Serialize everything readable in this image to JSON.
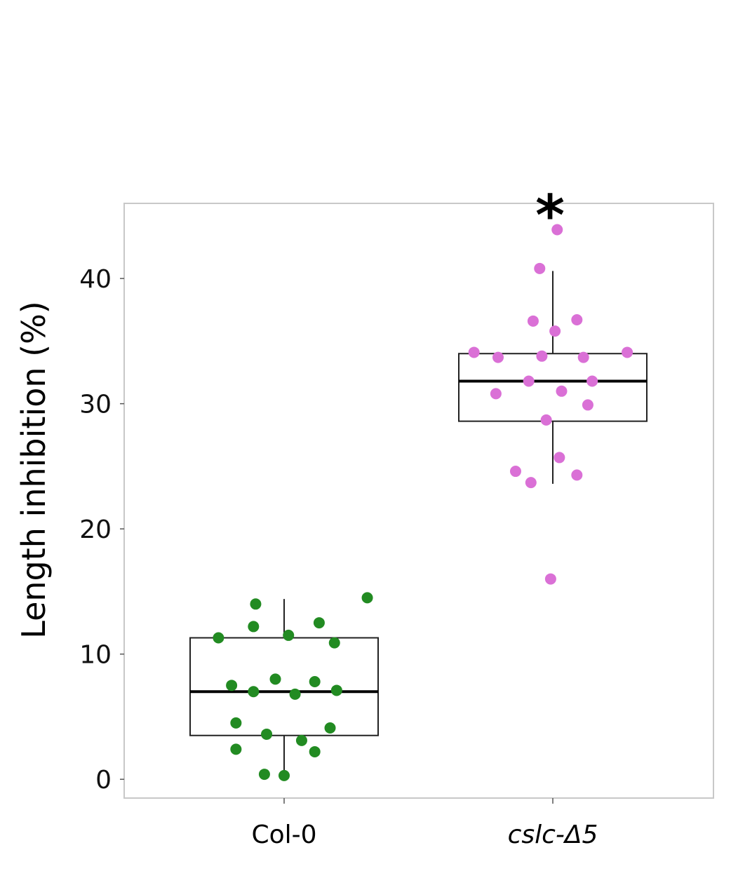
{
  "chart_data": {
    "type": "box",
    "ylabel": "Length inhibition (%)",
    "ylim": [
      -1.5,
      46
    ],
    "yticks": [
      "0",
      "10",
      "20",
      "30",
      "40"
    ],
    "yticks_values": [
      0,
      10,
      20,
      30,
      40
    ],
    "grid": false,
    "categories": [
      "Col-0",
      "cslc-Δ5"
    ],
    "groups": [
      {
        "label": "Col-0",
        "label_italic": false,
        "color": "#228B22",
        "box": {
          "whisker_low": 0.3,
          "q1": 3.5,
          "median": 7.0,
          "q3": 11.3,
          "whisker_high": 14.4
        },
        "points": [
          {
            "jitter": 0.38,
            "y": 14.5
          },
          {
            "jitter": -0.13,
            "y": 14.0
          },
          {
            "jitter": 0.16,
            "y": 12.5
          },
          {
            "jitter": -0.14,
            "y": 12.2
          },
          {
            "jitter": -0.3,
            "y": 11.3
          },
          {
            "jitter": 0.02,
            "y": 11.5
          },
          {
            "jitter": 0.23,
            "y": 10.9
          },
          {
            "jitter": -0.04,
            "y": 8.0
          },
          {
            "jitter": -0.24,
            "y": 7.5
          },
          {
            "jitter": 0.14,
            "y": 7.8
          },
          {
            "jitter": -0.14,
            "y": 7.0
          },
          {
            "jitter": 0.05,
            "y": 6.8
          },
          {
            "jitter": 0.24,
            "y": 7.1
          },
          {
            "jitter": -0.22,
            "y": 4.5
          },
          {
            "jitter": 0.21,
            "y": 4.1
          },
          {
            "jitter": -0.08,
            "y": 3.6
          },
          {
            "jitter": 0.08,
            "y": 3.1
          },
          {
            "jitter": -0.22,
            "y": 2.4
          },
          {
            "jitter": 0.14,
            "y": 2.2
          },
          {
            "jitter": -0.09,
            "y": 0.4
          },
          {
            "jitter": 0.0,
            "y": 0.3
          }
        ]
      },
      {
        "label": "cslc-Δ5",
        "label_italic": true,
        "color": "#DA70D6",
        "box": {
          "whisker_low": 23.6,
          "q1": 28.6,
          "median": 31.8,
          "q3": 34.0,
          "whisker_high": 40.6
        },
        "points": [
          {
            "jitter": 0.02,
            "y": 43.9
          },
          {
            "jitter": -0.06,
            "y": 40.8
          },
          {
            "jitter": -0.09,
            "y": 36.6
          },
          {
            "jitter": 0.11,
            "y": 36.7
          },
          {
            "jitter": 0.01,
            "y": 35.8
          },
          {
            "jitter": -0.36,
            "y": 34.1
          },
          {
            "jitter": -0.25,
            "y": 33.7
          },
          {
            "jitter": -0.05,
            "y": 33.8
          },
          {
            "jitter": 0.14,
            "y": 33.7
          },
          {
            "jitter": 0.34,
            "y": 34.1
          },
          {
            "jitter": -0.11,
            "y": 31.8
          },
          {
            "jitter": 0.18,
            "y": 31.8
          },
          {
            "jitter": -0.26,
            "y": 30.8
          },
          {
            "jitter": 0.04,
            "y": 31.0
          },
          {
            "jitter": 0.16,
            "y": 29.9
          },
          {
            "jitter": -0.03,
            "y": 28.7
          },
          {
            "jitter": 0.03,
            "y": 25.7
          },
          {
            "jitter": -0.17,
            "y": 24.6
          },
          {
            "jitter": -0.1,
            "y": 23.7
          },
          {
            "jitter": 0.11,
            "y": 24.3
          },
          {
            "jitter": -0.01,
            "y": 16.0
          }
        ],
        "annotation": "*"
      }
    ]
  }
}
